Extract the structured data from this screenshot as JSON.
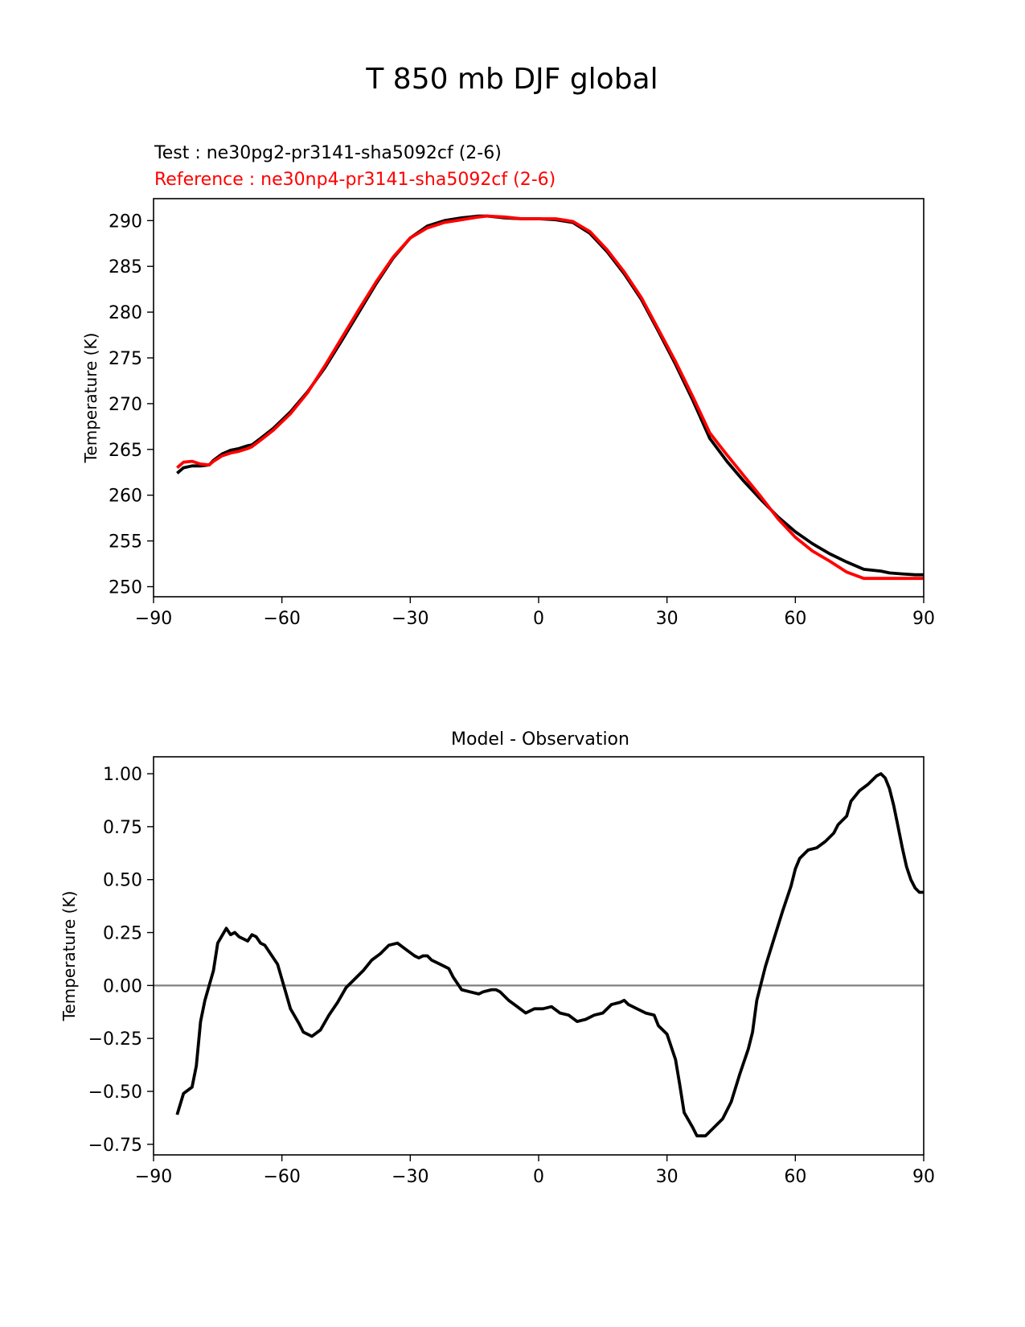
{
  "figure": {
    "suptitle": "T 850 mb DJF global"
  },
  "chart_data": [
    {
      "type": "line",
      "test_label": "Test : ne30pg2-pr3141-sha5092cf (2-6)",
      "reference_label": "Reference : ne30np4-pr3141-sha5092cf (2-6)",
      "xlabel": "",
      "ylabel": "Temperature (K)",
      "xlim": [
        -90,
        90
      ],
      "ylim": [
        248.9,
        292.4
      ],
      "xticks": [
        -90,
        -60,
        -30,
        0,
        30,
        60,
        90
      ],
      "xtick_labels": [
        "−90",
        "−60",
        "−30",
        "0",
        "30",
        "60",
        "90"
      ],
      "yticks": [
        250,
        255,
        260,
        265,
        270,
        275,
        280,
        285,
        290
      ],
      "ytick_labels": [
        "250",
        "255",
        "260",
        "265",
        "270",
        "275",
        "280",
        "285",
        "290"
      ],
      "grid": false,
      "series": [
        {
          "name": "Test : ne30pg2-pr3141-sha5092cf (2-6)",
          "color": "#000000",
          "x": [
            -84.5,
            -83,
            -81,
            -79,
            -77,
            -76,
            -74,
            -72,
            -70,
            -68,
            -67,
            -65,
            -62,
            -58,
            -54,
            -50,
            -46,
            -42,
            -38,
            -34,
            -30,
            -26,
            -22,
            -18,
            -14,
            -12,
            -8,
            -4,
            0,
            4,
            8,
            12,
            16,
            20,
            24,
            28,
            32,
            36,
            40,
            44,
            48,
            52,
            56,
            60,
            64,
            68,
            72,
            76,
            80,
            82,
            85,
            88,
            90
          ],
          "y": [
            262.4,
            263.0,
            263.2,
            263.2,
            263.3,
            263.8,
            264.5,
            264.9,
            265.1,
            265.4,
            265.5,
            266.2,
            267.3,
            269.1,
            271.3,
            273.9,
            276.9,
            280.0,
            283.1,
            285.9,
            288.1,
            289.4,
            290.0,
            290.3,
            290.5,
            290.5,
            290.3,
            290.2,
            290.2,
            290.1,
            289.8,
            288.6,
            286.6,
            284.2,
            281.4,
            277.9,
            274.3,
            270.4,
            266.2,
            263.7,
            261.5,
            259.5,
            257.6,
            256.0,
            254.7,
            253.6,
            252.7,
            251.9,
            251.7,
            251.5,
            251.4,
            251.3,
            251.3
          ]
        },
        {
          "name": "Reference : ne30np4-pr3141-sha5092cf (2-6)",
          "color": "#ff0000",
          "x": [
            -84.5,
            -83,
            -81,
            -79,
            -77,
            -76,
            -74,
            -72,
            -70,
            -68,
            -67,
            -65,
            -62,
            -58,
            -54,
            -50,
            -46,
            -42,
            -38,
            -34,
            -30,
            -26,
            -22,
            -18,
            -14,
            -12,
            -8,
            -4,
            0,
            4,
            8,
            12,
            16,
            20,
            24,
            28,
            32,
            36,
            40,
            44,
            48,
            52,
            56,
            60,
            64,
            68,
            72,
            76,
            80,
            82,
            85,
            88,
            90
          ],
          "y": [
            263.0,
            263.6,
            263.7,
            263.4,
            263.3,
            263.7,
            264.3,
            264.6,
            264.8,
            265.1,
            265.3,
            266.0,
            267.1,
            268.9,
            271.2,
            274.1,
            277.2,
            280.3,
            283.3,
            286.0,
            288.1,
            289.2,
            289.8,
            290.1,
            290.4,
            290.5,
            290.4,
            290.2,
            290.2,
            290.2,
            289.9,
            288.8,
            286.8,
            284.4,
            281.6,
            278.1,
            274.6,
            270.8,
            266.8,
            264.4,
            262.1,
            259.8,
            257.4,
            255.4,
            253.9,
            252.8,
            251.6,
            250.9,
            250.9,
            250.9,
            250.9,
            250.9,
            250.9
          ]
        }
      ]
    },
    {
      "type": "line",
      "title": "Model - Observation",
      "xlabel": "",
      "ylabel": "Temperature (K)",
      "xlim": [
        -90,
        90
      ],
      "ylim": [
        -0.8,
        1.08
      ],
      "xticks": [
        -90,
        -60,
        -30,
        0,
        30,
        60,
        90
      ],
      "xtick_labels": [
        "−90",
        "−60",
        "−30",
        "0",
        "30",
        "60",
        "90"
      ],
      "yticks": [
        -0.75,
        -0.5,
        -0.25,
        0.0,
        0.25,
        0.5,
        0.75,
        1.0
      ],
      "ytick_labels": [
        "−0.75",
        "−0.50",
        "−0.25",
        "0.00",
        "0.25",
        "0.50",
        "0.75",
        "1.00"
      ],
      "grid": false,
      "zero_line_color": "#808080",
      "series": [
        {
          "color": "#000000",
          "x": [
            -84.5,
            -83,
            -81,
            -80,
            -79,
            -78,
            -76,
            -75,
            -73,
            -72,
            -71,
            -70,
            -69,
            -68,
            -67,
            -66,
            -65,
            -64,
            -63,
            -61,
            -59,
            -58,
            -56,
            -55,
            -53,
            -51,
            -49,
            -47,
            -45,
            -43,
            -41,
            -39,
            -37,
            -35,
            -33,
            -31,
            -29,
            -28,
            -27,
            -26,
            -25,
            -23,
            -21,
            -20,
            -18,
            -16,
            -14,
            -13,
            -11,
            -10,
            -9,
            -7,
            -5,
            -3,
            -1,
            0,
            1,
            3,
            5,
            7,
            9,
            11,
            13,
            15,
            17,
            19,
            20,
            21,
            23,
            25,
            27,
            28,
            30,
            31,
            32,
            33,
            34,
            36,
            37,
            39,
            41,
            43,
            45,
            47,
            49,
            50,
            51,
            53,
            55,
            57,
            59,
            60,
            61,
            63,
            65,
            67,
            69,
            70,
            72,
            73,
            75,
            77,
            78,
            79,
            80,
            81,
            82,
            83,
            84,
            85,
            86,
            87,
            88,
            89,
            90
          ],
          "y": [
            -0.61,
            -0.51,
            -0.48,
            -0.38,
            -0.17,
            -0.07,
            0.07,
            0.2,
            0.27,
            0.24,
            0.25,
            0.23,
            0.22,
            0.21,
            0.24,
            0.23,
            0.2,
            0.19,
            0.16,
            0.1,
            -0.04,
            -0.11,
            -0.18,
            -0.22,
            -0.24,
            -0.21,
            -0.14,
            -0.08,
            -0.01,
            0.03,
            0.07,
            0.12,
            0.15,
            0.19,
            0.2,
            0.17,
            0.14,
            0.13,
            0.14,
            0.14,
            0.12,
            0.1,
            0.08,
            0.04,
            -0.02,
            -0.03,
            -0.04,
            -0.03,
            -0.02,
            -0.02,
            -0.03,
            -0.07,
            -0.1,
            -0.13,
            -0.11,
            -0.11,
            -0.11,
            -0.1,
            -0.13,
            -0.14,
            -0.17,
            -0.16,
            -0.14,
            -0.13,
            -0.09,
            -0.08,
            -0.07,
            -0.09,
            -0.11,
            -0.13,
            -0.14,
            -0.19,
            -0.23,
            -0.29,
            -0.35,
            -0.47,
            -0.6,
            -0.67,
            -0.71,
            -0.71,
            -0.67,
            -0.63,
            -0.55,
            -0.42,
            -0.3,
            -0.22,
            -0.07,
            0.09,
            0.22,
            0.35,
            0.47,
            0.55,
            0.6,
            0.64,
            0.65,
            0.68,
            0.72,
            0.76,
            0.8,
            0.87,
            0.92,
            0.95,
            0.97,
            0.99,
            1.0,
            0.98,
            0.93,
            0.85,
            0.75,
            0.65,
            0.56,
            0.5,
            0.46,
            0.44,
            0.44
          ]
        }
      ]
    }
  ]
}
